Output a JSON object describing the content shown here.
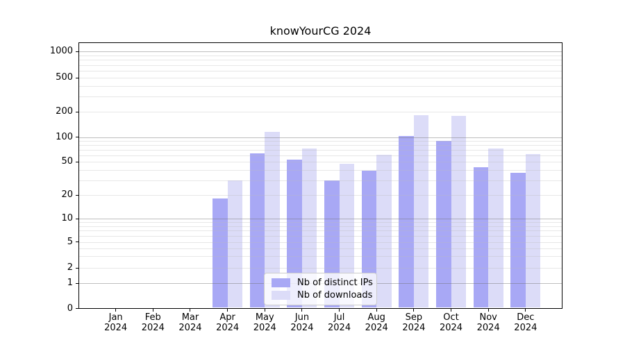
{
  "chart_data": {
    "type": "bar",
    "title": "knowYourCG 2024",
    "categories": [
      "Jan 2024",
      "Feb 2024",
      "Mar 2024",
      "Apr 2024",
      "May 2024",
      "Jun 2024",
      "Jul 2024",
      "Aug 2024",
      "Sep 2024",
      "Oct 2024",
      "Nov 2024",
      "Dec 2024"
    ],
    "month_labels": [
      "Jan",
      "Feb",
      "Mar",
      "Apr",
      "May",
      "Jun",
      "Jul",
      "Aug",
      "Sep",
      "Oct",
      "Nov",
      "Dec"
    ],
    "year_label": "2024",
    "series": [
      {
        "name": "Nb of distinct IPs",
        "color": "#a8a8f5",
        "values": [
          0,
          0,
          0,
          18,
          63,
          53,
          30,
          39,
          103,
          90,
          43,
          37
        ]
      },
      {
        "name": "Nb of downloads",
        "color": "#dcdcf8",
        "values": [
          0,
          0,
          0,
          30,
          115,
          72,
          47,
          61,
          181,
          177,
          72,
          62
        ]
      }
    ],
    "yscale": "symlog",
    "yticks": [
      0,
      1,
      2,
      5,
      10,
      20,
      50,
      100,
      200,
      500,
      1000
    ],
    "ylim": [
      0,
      1250
    ],
    "grid": true,
    "legend_position": "lower center",
    "colors": {
      "major_grid": "#c3c3c3",
      "minor_grid": "#e9e9e9",
      "spine": "#000000",
      "background": "#ffffff"
    }
  }
}
